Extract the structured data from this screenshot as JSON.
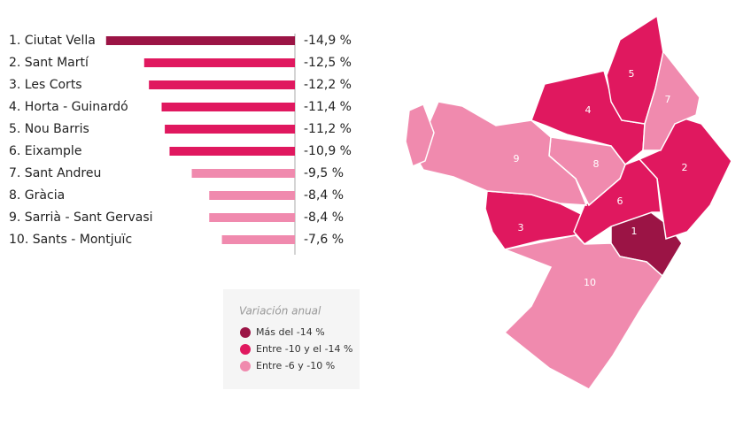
{
  "chart_data": {
    "type": "hbar",
    "categories": [
      "1. Ciutat Vella",
      "2. Sant Martí",
      "3. Les Corts",
      "4. Horta - Guinardó",
      "5. Nou Barris",
      "6. Eixample",
      "7. Sant Andreu",
      "8. Gràcia",
      "9. Sarrià - Sant Gervasi",
      "10. Sants - Montjuïc"
    ],
    "values": [
      -14.9,
      -12.5,
      -12.2,
      -11.4,
      -11.2,
      -10.9,
      -9.5,
      -8.4,
      -8.4,
      -7.6
    ],
    "value_labels": [
      "-14,9 %",
      "-12,5 %",
      "-12,2 %",
      "-11,4 %",
      "-11,2 %",
      "-10,9 %",
      "-9,5 %",
      "-8,4 %",
      "-8,4 %",
      "-7,6 %"
    ],
    "colors": [
      "#9b1445",
      "#e0185f",
      "#e0185f",
      "#e0185f",
      "#e0185f",
      "#e0185f",
      "#f08aae",
      "#f08aae",
      "#f08aae",
      "#f08aae"
    ],
    "xlim": [
      -15,
      -3
    ],
    "legend": {
      "title": "Variación anual",
      "entries": [
        {
          "label": "Más del -14 %",
          "color": "#9b1445"
        },
        {
          "label": "Entre -10 y el -14 %",
          "color": "#e0185f"
        },
        {
          "label": "Entre -6 y -10 %",
          "color": "#f08aae"
        }
      ]
    }
  },
  "map": {
    "districts": [
      {
        "label": "1",
        "color": "#9b1445"
      },
      {
        "label": "2",
        "color": "#e0185f"
      },
      {
        "label": "3",
        "color": "#e0185f"
      },
      {
        "label": "4",
        "color": "#e0185f"
      },
      {
        "label": "5",
        "color": "#e0185f"
      },
      {
        "label": "6",
        "color": "#e0185f"
      },
      {
        "label": "7",
        "color": "#f08aae"
      },
      {
        "label": "8",
        "color": "#f08aae"
      },
      {
        "label": "9",
        "color": "#f08aae"
      },
      {
        "label": "10",
        "color": "#f08aae"
      }
    ]
  }
}
